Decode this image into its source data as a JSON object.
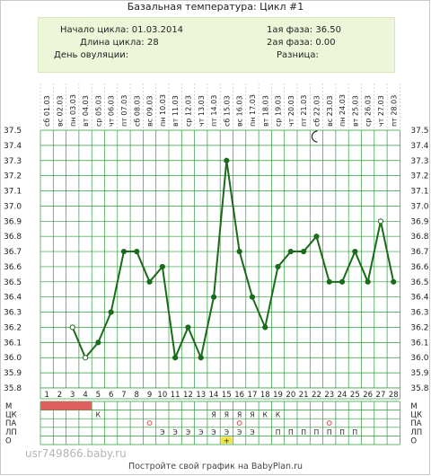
{
  "title": "Базальная температура: Цикл #1",
  "info": {
    "cycle_start": "Начало цикла: 01.03.2014",
    "cycle_length": "Длина цикла: 28",
    "ovulation_day": "День овуляции:",
    "phase1": "1ая фаза: 36.50",
    "phase2": "2ая фаза: 0.00",
    "difference": "Разница:"
  },
  "chart_data": {
    "type": "line",
    "dates": [
      "01.03",
      "02.03",
      "03.03",
      "04.03",
      "05.03",
      "06.03",
      "07.03",
      "08.03",
      "09.03",
      "10.03",
      "11.03",
      "12.03",
      "13.03",
      "14.03",
      "15.03",
      "16.03",
      "17.03",
      "18.03",
      "19.03",
      "20.03",
      "21.03",
      "22.03",
      "23.03",
      "24.03",
      "25.03",
      "26.03",
      "27.03",
      "28.03"
    ],
    "weekdays": [
      "сб",
      "вс",
      "пн",
      "вт",
      "ср",
      "чт",
      "пт",
      "сб",
      "вс",
      "пн",
      "вт",
      "ср",
      "чт",
      "пт",
      "сб",
      "вс",
      "пн",
      "вт",
      "ср",
      "чт",
      "пт",
      "сб",
      "вс",
      "пн",
      "вт",
      "ср",
      "чт",
      "пт"
    ],
    "days": [
      1,
      2,
      3,
      4,
      5,
      6,
      7,
      8,
      9,
      10,
      11,
      12,
      13,
      14,
      15,
      16,
      17,
      18,
      19,
      20,
      21,
      22,
      23,
      24,
      25,
      26,
      27,
      28
    ],
    "values": [
      null,
      null,
      36.2,
      36.0,
      36.1,
      36.3,
      36.7,
      36.7,
      36.5,
      36.6,
      36.0,
      36.2,
      36.0,
      36.4,
      37.3,
      36.7,
      36.4,
      36.2,
      36.6,
      36.7,
      36.7,
      36.8,
      36.5,
      36.5,
      36.7,
      36.5,
      36.9,
      36.5
    ],
    "open_points": [
      3,
      4,
      27
    ],
    "ylim": [
      35.8,
      37.5
    ],
    "yticks": [
      "37.5",
      "37.4",
      "37.3",
      "37.2",
      "37.1",
      "37.0",
      "36.9",
      "36.8",
      "36.7",
      "36.6",
      "36.5",
      "36.4",
      "36.3",
      "36.2",
      "36.1",
      "36.0",
      "35.9",
      "35.8"
    ],
    "line_color": "#1a6b1a",
    "grid_color": "#2d9a3a",
    "icon": "moon-icon",
    "icon_day": 22,
    "row_labels": [
      "М",
      "ЦК",
      "ПА",
      "ЛП",
      "О"
    ],
    "rows": {
      "M": [
        1,
        2,
        3,
        4
      ],
      "M_color": "#e06060",
      "CK": [
        [
          5,
          "К"
        ],
        [
          14,
          "Я"
        ],
        [
          15,
          "Я"
        ],
        [
          16,
          "Я"
        ],
        [
          17,
          "Я"
        ],
        [
          18,
          "К"
        ],
        [
          19,
          "К"
        ]
      ],
      "PA": [
        9,
        16,
        23
      ],
      "LP": [
        [
          10,
          "Э"
        ],
        [
          11,
          "Э"
        ],
        [
          12,
          "Э"
        ],
        [
          13,
          "Э"
        ],
        [
          14,
          "Э"
        ],
        [
          15,
          "Э"
        ],
        [
          16,
          "Э"
        ],
        [
          17,
          "Э"
        ],
        [
          19,
          "П"
        ],
        [
          20,
          "П"
        ],
        [
          21,
          "П"
        ],
        [
          22,
          "П"
        ],
        [
          23,
          "П"
        ],
        [
          24,
          "П"
        ],
        [
          25,
          "П"
        ]
      ],
      "O": [
        [
          15,
          "+"
        ]
      ],
      "O_color": "#f2e43a"
    }
  },
  "watermark": "usr749866.baby.ru",
  "footer": "Постройте свой график на BabyPlan.ru"
}
